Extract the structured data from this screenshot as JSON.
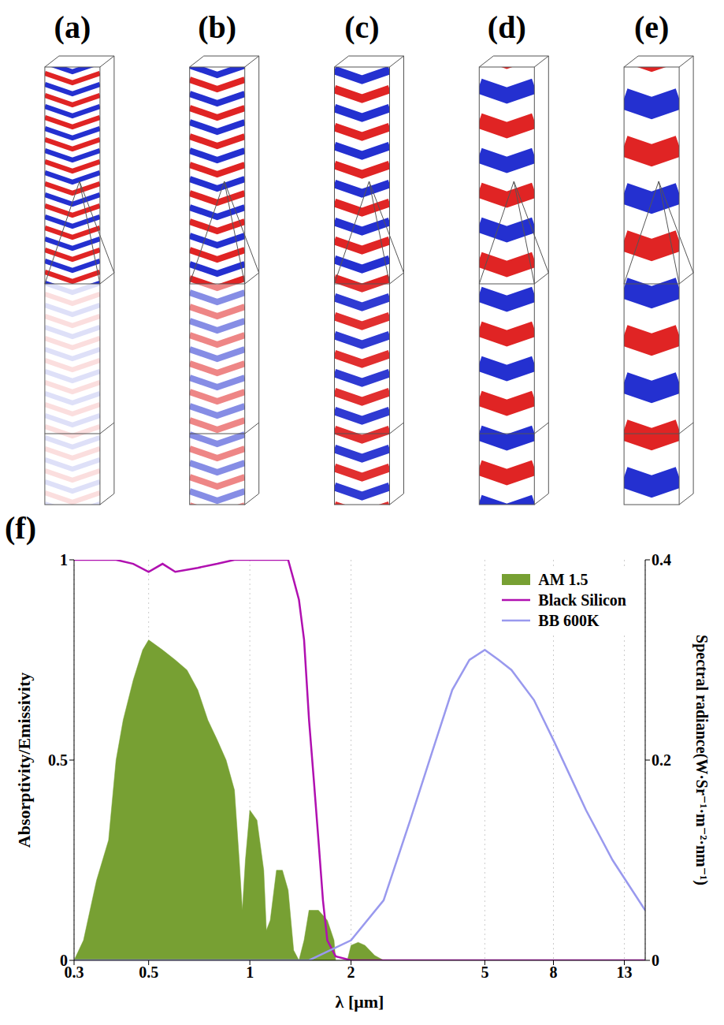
{
  "panels": {
    "labels": [
      "(a)",
      "(b)",
      "(c)",
      "(d)",
      "(e)"
    ]
  },
  "chart_data": {
    "type": "line",
    "panel_label": "(f)",
    "x_label": "λ [μm]",
    "y_label": "Absorptivity/Emissivity",
    "y2_label": "Spectral radiance(W·Sr⁻¹·m⁻²·nm⁻¹)",
    "log": "x",
    "grid": true,
    "legend": "upper right",
    "xlim": [
      0.3,
      15
    ],
    "xticks": [
      0.3,
      0.5,
      1,
      2,
      5,
      8,
      13
    ],
    "ylim": [
      0,
      1
    ],
    "yticks": [
      0,
      0.5,
      1
    ],
    "y2lim": [
      0,
      0.4
    ],
    "y2ticks": [
      0,
      0.2,
      0.4
    ],
    "series": [
      {
        "name": "AM 1.5",
        "type": "area",
        "color": "#77a033",
        "axis": "y2",
        "x": [
          0.3,
          0.32,
          0.35,
          0.38,
          0.4,
          0.42,
          0.45,
          0.48,
          0.5,
          0.55,
          0.6,
          0.65,
          0.7,
          0.75,
          0.8,
          0.85,
          0.9,
          0.93,
          0.95,
          0.97,
          1.0,
          1.05,
          1.1,
          1.12,
          1.15,
          1.2,
          1.25,
          1.3,
          1.35,
          1.4,
          1.45,
          1.5,
          1.55,
          1.6,
          1.7,
          1.78,
          1.8,
          1.95,
          2.0,
          2.1,
          2.2,
          2.35,
          2.5,
          15
        ],
        "values": [
          0,
          0.02,
          0.08,
          0.12,
          0.2,
          0.24,
          0.28,
          0.31,
          0.32,
          0.31,
          0.3,
          0.29,
          0.27,
          0.24,
          0.22,
          0.2,
          0.17,
          0.1,
          0.05,
          0.1,
          0.15,
          0.14,
          0.09,
          0.03,
          0.04,
          0.09,
          0.09,
          0.07,
          0.01,
          0,
          0.02,
          0.05,
          0.05,
          0.05,
          0.04,
          0.02,
          0,
          0,
          0.015,
          0.018,
          0.015,
          0.005,
          0,
          0
        ]
      },
      {
        "name": "Black Silicon",
        "type": "line",
        "color": "#b010b0",
        "x": [
          0.3,
          0.4,
          0.45,
          0.5,
          0.55,
          0.6,
          0.7,
          0.8,
          0.9,
          1.0,
          1.1,
          1.2,
          1.3,
          1.35,
          1.4,
          1.45,
          1.5,
          1.55,
          1.6,
          1.65,
          1.7,
          1.8,
          2,
          15
        ],
        "values": [
          1,
          1,
          0.99,
          0.97,
          0.99,
          0.97,
          0.98,
          0.99,
          1,
          1,
          1,
          1,
          1,
          0.95,
          0.9,
          0.8,
          0.6,
          0.45,
          0.3,
          0.15,
          0.05,
          0.01,
          0,
          0
        ]
      },
      {
        "name": "BB 600K",
        "type": "line",
        "color": "#9999ee",
        "axis": "y2",
        "x": [
          0.3,
          1,
          1.5,
          2,
          2.5,
          3,
          3.5,
          4,
          4.5,
          5,
          5.5,
          6,
          7,
          8,
          10,
          12,
          15
        ],
        "values": [
          0,
          0,
          0,
          0.02,
          0.06,
          0.14,
          0.21,
          0.27,
          0.3,
          0.31,
          0.3,
          0.29,
          0.26,
          0.22,
          0.15,
          0.1,
          0.05
        ]
      }
    ]
  }
}
